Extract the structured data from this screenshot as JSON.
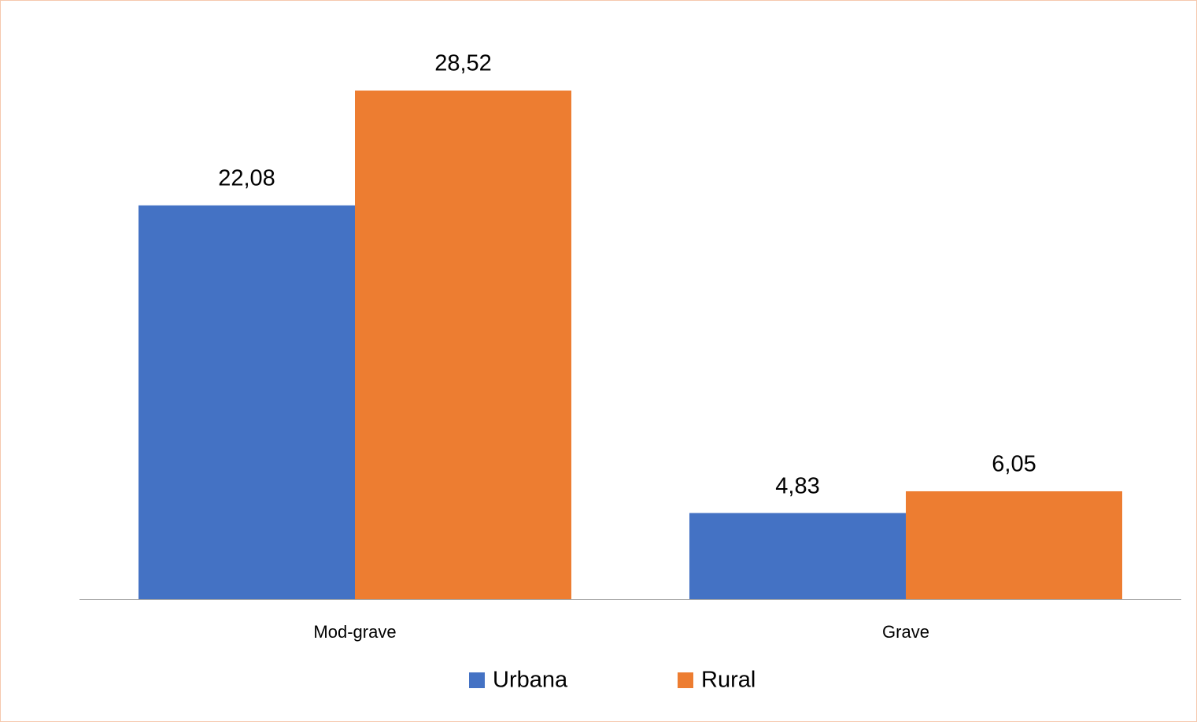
{
  "chart_data": {
    "type": "bar",
    "categories": [
      "Mod-grave",
      "Grave"
    ],
    "series": [
      {
        "name": "Urbana",
        "color": "#4472c4",
        "values": [
          22.08,
          4.83
        ],
        "value_labels": [
          "22,08",
          "4,83"
        ]
      },
      {
        "name": "Rural",
        "color": "#ed7d31",
        "values": [
          28.52,
          6.05
        ],
        "value_labels": [
          "28,52",
          "6,05"
        ]
      }
    ],
    "legend": "bottom"
  }
}
